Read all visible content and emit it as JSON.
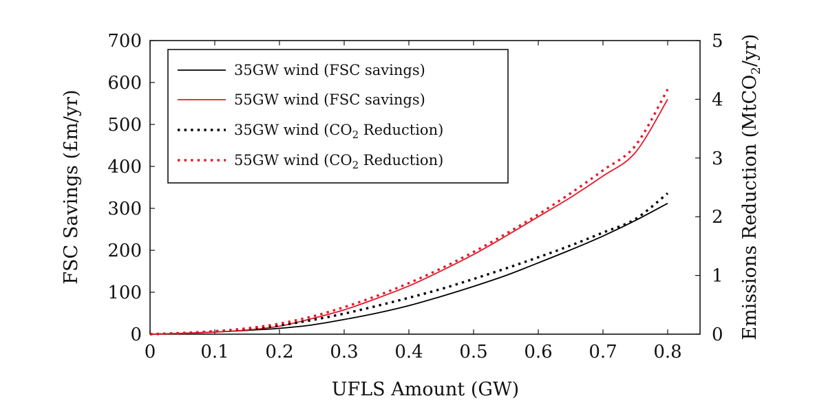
{
  "chart_data": {
    "type": "line",
    "xlabel": "UFLS Amount (GW)",
    "ylabel": "FSC Savings (£m/yr)",
    "y2label": "Emissions Reduction (MtCO",
    "y2label_sub": "2",
    "y2label_end": "/yr)",
    "xlim": [
      0,
      0.85
    ],
    "ylim": [
      0,
      700
    ],
    "y2lim": [
      0,
      5
    ],
    "xticks": [
      0,
      0.1,
      0.2,
      0.3,
      0.4,
      0.5,
      0.6,
      0.7,
      0.8
    ],
    "xtick_labels": [
      "0",
      "0.1",
      "0.2",
      "0.3",
      "0.4",
      "0.5",
      "0.6",
      "0.7",
      "0.8"
    ],
    "yticks": [
      0,
      100,
      200,
      300,
      400,
      500,
      600,
      700
    ],
    "ytick_labels": [
      "0",
      "100",
      "200",
      "300",
      "400",
      "500",
      "600",
      "700"
    ],
    "y2ticks": [
      0,
      1,
      2,
      3,
      4,
      5
    ],
    "y2tick_labels": [
      "0",
      "1",
      "2",
      "3",
      "4",
      "5"
    ],
    "grid": false,
    "legend_position": "top-left",
    "x": [
      0,
      0.05,
      0.1,
      0.15,
      0.2,
      0.25,
      0.3,
      0.35,
      0.4,
      0.45,
      0.5,
      0.55,
      0.6,
      0.65,
      0.7,
      0.75,
      0.8
    ],
    "series": [
      {
        "name": "35GW wind (FSC savings)",
        "axis": "left",
        "style": "solid",
        "color": "#000000",
        "values": [
          0,
          2,
          5,
          9,
          14,
          22,
          35,
          50,
          68,
          90,
          114,
          140,
          170,
          201,
          234,
          271,
          312
        ]
      },
      {
        "name": "55GW wind (FSC savings)",
        "axis": "left",
        "style": "solid",
        "color": "#e31a2a",
        "values": [
          0,
          2,
          5,
          10,
          19,
          37,
          58,
          85,
          115,
          151,
          190,
          234,
          280,
          326,
          377,
          433,
          560
        ]
      },
      {
        "name": "35GW wind (CO",
        "name_sub": "2",
        "name_end": " Reduction)",
        "axis": "right",
        "style": "dotted",
        "color": "#000000",
        "values": [
          0,
          0.02,
          0.05,
          0.09,
          0.15,
          0.24,
          0.35,
          0.48,
          0.62,
          0.77,
          0.94,
          1.12,
          1.31,
          1.51,
          1.73,
          1.96,
          2.4
        ]
      },
      {
        "name": "55GW wind (CO",
        "name_sub": "2",
        "name_end": " Reduction)",
        "axis": "right",
        "style": "dotted",
        "color": "#e31a2a",
        "values": [
          0,
          0.02,
          0.05,
          0.1,
          0.18,
          0.3,
          0.46,
          0.65,
          0.87,
          1.12,
          1.4,
          1.71,
          2.04,
          2.4,
          2.79,
          3.21,
          4.17
        ]
      }
    ]
  }
}
